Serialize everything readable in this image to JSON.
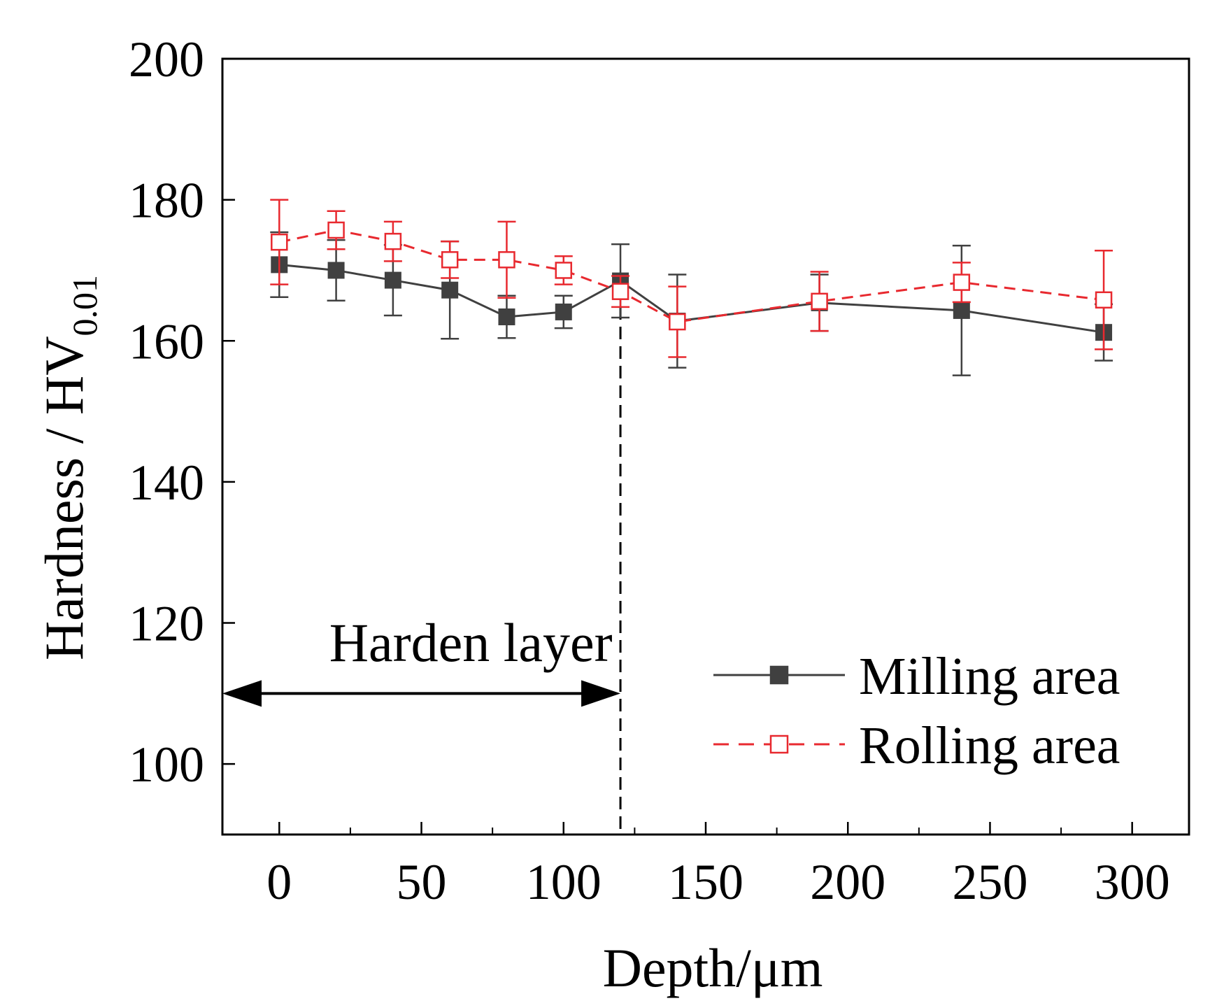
{
  "chart_data": {
    "type": "line",
    "title": "",
    "xlabel": "Depth/μm",
    "ylabel_main": "Hardness / HV",
    "ylabel_sub": "0.01",
    "xlim": [
      -20,
      320
    ],
    "ylim": [
      90,
      200
    ],
    "x_ticks": [
      0,
      50,
      100,
      150,
      200,
      250,
      300
    ],
    "y_ticks": [
      100,
      120,
      140,
      160,
      180,
      200
    ],
    "x_minor_step": 25,
    "y_minor_step": 10,
    "grid": false,
    "legend_position": "lower-right",
    "series": [
      {
        "name": "Milling area",
        "color": "#404040",
        "line_style": "solid",
        "marker": "filled-square",
        "x": [
          0,
          20,
          40,
          60,
          80,
          100,
          120,
          140,
          190,
          240,
          290
        ],
        "y": [
          170.8,
          170.0,
          168.6,
          167.2,
          163.4,
          164.1,
          168.5,
          162.8,
          165.4,
          164.3,
          161.2
        ],
        "error": [
          4.6,
          4.3,
          5.0,
          6.9,
          3.0,
          2.3,
          5.2,
          6.6,
          4.0,
          9.2,
          4.0
        ]
      },
      {
        "name": "Rolling area",
        "color": "#e8292f",
        "line_style": "dashed",
        "marker": "open-square",
        "x": [
          0,
          20,
          40,
          60,
          80,
          100,
          120,
          140,
          190,
          240,
          290
        ],
        "y": [
          174.0,
          175.7,
          174.1,
          171.5,
          171.5,
          170.0,
          167.0,
          162.7,
          165.6,
          168.3,
          165.8
        ],
        "error": [
          6.0,
          2.7,
          2.8,
          2.6,
          5.4,
          2.0,
          2.2,
          5.0,
          4.2,
          2.8,
          7.0
        ]
      }
    ],
    "annotations": {
      "boundary_x": 120,
      "arrow_y": 110,
      "arrow_x_start": -20,
      "arrow_x_end": 120,
      "text": "Harden layer"
    }
  }
}
